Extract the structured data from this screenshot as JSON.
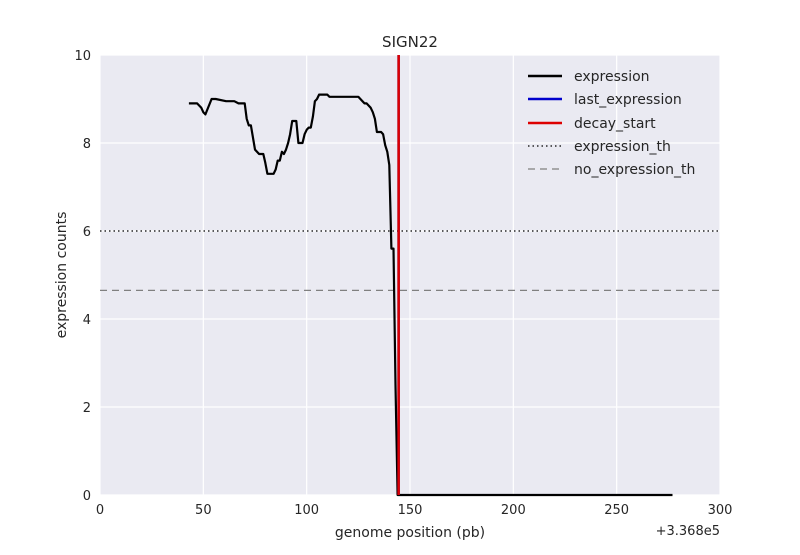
{
  "chart_data": {
    "type": "line",
    "title": "SIGN22",
    "xlabel": "genome position (pb)",
    "ylabel": "expression counts",
    "x_offset_label": "+3.368e5",
    "xlim": [
      0,
      300
    ],
    "ylim": [
      0,
      10
    ],
    "x_ticks": [
      0,
      50,
      100,
      150,
      200,
      250,
      300
    ],
    "y_ticks": [
      0,
      2,
      4,
      6,
      8,
      10
    ],
    "x_tick_labels": [
      "0",
      "50",
      "100",
      "150",
      "200",
      "250",
      "300"
    ],
    "y_tick_labels": [
      "0",
      "2",
      "4",
      "6",
      "8",
      "10"
    ],
    "grid": true,
    "legend_position": "top-right",
    "series": [
      {
        "name": "expression",
        "color": "#000000",
        "style": "solid",
        "x": [
          43,
          47,
          49,
          50,
          51,
          54,
          56,
          61,
          63,
          64,
          65,
          67,
          68,
          69,
          70,
          71,
          72,
          73,
          75,
          77,
          78,
          79,
          80,
          81,
          83,
          84,
          85,
          86,
          87,
          88,
          89,
          90,
          91,
          92,
          93,
          94,
          95,
          96,
          97,
          98,
          99,
          100,
          101,
          102,
          103,
          104,
          105,
          106,
          107,
          108,
          109,
          110,
          111,
          112,
          113,
          114,
          115,
          116,
          117,
          118,
          119,
          120,
          121,
          122,
          123,
          124,
          125,
          126,
          127,
          128,
          129,
          130,
          131,
          132,
          133,
          134,
          135,
          136,
          137,
          138,
          139,
          140,
          141,
          142,
          143,
          144,
          145,
          150,
          200,
          250,
          277
        ],
        "y": [
          8.9,
          8.9,
          8.8,
          8.7,
          8.65,
          9.0,
          9.0,
          8.95,
          8.95,
          8.95,
          8.95,
          8.9,
          8.9,
          8.9,
          8.9,
          8.55,
          8.4,
          8.4,
          7.85,
          7.75,
          7.75,
          7.75,
          7.55,
          7.3,
          7.3,
          7.3,
          7.4,
          7.6,
          7.6,
          7.8,
          7.75,
          7.85,
          8.0,
          8.2,
          8.5,
          8.5,
          8.5,
          8.0,
          8.0,
          8.0,
          8.2,
          8.3,
          8.35,
          8.35,
          8.6,
          8.95,
          9.0,
          9.1,
          9.1,
          9.1,
          9.1,
          9.1,
          9.05,
          9.05,
          9.05,
          9.05,
          9.05,
          9.05,
          9.05,
          9.05,
          9.05,
          9.05,
          9.05,
          9.05,
          9.05,
          9.05,
          9.05,
          9.0,
          8.95,
          8.9,
          8.9,
          8.85,
          8.8,
          8.7,
          8.55,
          8.25,
          8.25,
          8.25,
          8.2,
          7.95,
          7.8,
          7.5,
          5.6,
          5.6,
          2.5,
          0.0,
          0.0,
          0.0,
          0.0,
          0.0,
          0.0
        ]
      },
      {
        "name": "last_expression",
        "color": "#0000cc",
        "style": "solid",
        "vline_x": 144.5
      },
      {
        "name": "decay_start",
        "color": "#dd0000",
        "style": "solid",
        "vline_x": 144.5
      },
      {
        "name": "expression_th",
        "color": "#000000",
        "style": "dotted",
        "hline_y": 6.0
      },
      {
        "name": "no_expression_th",
        "color": "#808080",
        "style": "dashed",
        "hline_y": 4.65
      }
    ]
  }
}
